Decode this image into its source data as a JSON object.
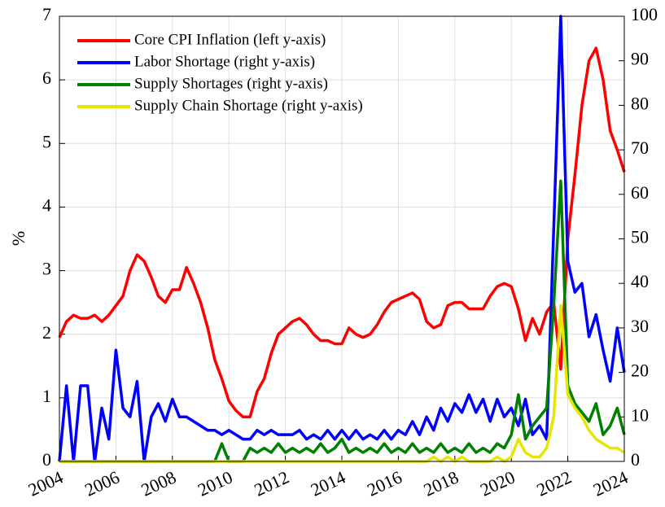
{
  "chart_data": {
    "type": "line",
    "ylabel": "%",
    "x": [
      2004,
      2004.25,
      2004.5,
      2004.75,
      2005,
      2005.25,
      2005.5,
      2005.75,
      2006,
      2006.25,
      2006.5,
      2006.75,
      2007,
      2007.25,
      2007.5,
      2007.75,
      2008,
      2008.25,
      2008.5,
      2008.75,
      2009,
      2009.25,
      2009.5,
      2009.75,
      2010,
      2010.25,
      2010.5,
      2010.75,
      2011,
      2011.25,
      2011.5,
      2011.75,
      2012,
      2012.25,
      2012.5,
      2012.75,
      2013,
      2013.25,
      2013.5,
      2013.75,
      2014,
      2014.25,
      2014.5,
      2014.75,
      2015,
      2015.25,
      2015.5,
      2015.75,
      2016,
      2016.25,
      2016.5,
      2016.75,
      2017,
      2017.25,
      2017.5,
      2017.75,
      2018,
      2018.25,
      2018.5,
      2018.75,
      2019,
      2019.25,
      2019.5,
      2019.75,
      2020,
      2020.25,
      2020.5,
      2020.75,
      2021,
      2021.25,
      2021.5,
      2021.75,
      2022,
      2022.25,
      2022.5,
      2022.75,
      2023,
      2023.25,
      2023.5,
      2023.75,
      2024
    ],
    "series": [
      {
        "name": "Core CPI Inflation (left y-axis)",
        "color": "#ff0000",
        "axis": "y",
        "values": [
          1.95,
          2.2,
          2.3,
          2.25,
          2.25,
          2.3,
          2.2,
          2.3,
          2.45,
          2.6,
          3.0,
          3.25,
          3.15,
          2.9,
          2.6,
          2.5,
          2.7,
          2.7,
          3.05,
          2.8,
          2.5,
          2.1,
          1.6,
          1.3,
          0.95,
          0.8,
          0.7,
          0.7,
          1.1,
          1.3,
          1.7,
          2.0,
          2.1,
          2.2,
          2.25,
          2.15,
          2.0,
          1.9,
          1.9,
          1.85,
          1.85,
          2.1,
          2.0,
          1.95,
          2.0,
          2.15,
          2.35,
          2.5,
          2.55,
          2.6,
          2.65,
          2.55,
          2.2,
          2.1,
          2.15,
          2.45,
          2.5,
          2.5,
          2.4,
          2.4,
          2.4,
          2.6,
          2.75,
          2.8,
          2.75,
          2.4,
          1.9,
          2.25,
          2.0,
          2.35,
          2.5,
          1.45,
          3.5,
          4.5,
          5.6,
          6.3,
          6.5,
          6.0,
          5.2,
          4.9,
          4.55
        ]
      },
      {
        "name": "Labor Shortage (right y-axis)",
        "color": "#0000ff",
        "axis": "y2",
        "values": [
          0,
          17,
          0,
          17,
          17,
          0,
          12,
          5,
          25,
          12,
          10,
          18,
          0,
          10,
          13,
          9,
          14,
          10,
          10,
          9,
          8,
          7,
          7,
          6,
          7,
          6,
          5,
          5,
          7,
          6,
          7,
          6,
          6,
          6,
          7,
          5,
          6,
          5,
          7,
          5,
          7,
          5,
          7,
          5,
          6,
          5,
          7,
          5,
          7,
          6,
          9,
          6,
          10,
          7,
          12,
          9,
          13,
          11,
          15,
          11,
          14,
          9,
          14,
          10,
          12,
          8,
          14,
          6,
          8,
          5,
          52,
          100,
          45,
          38,
          40,
          28,
          33,
          25,
          18,
          30,
          20
        ]
      },
      {
        "name": "Supply Shortages (right y-axis)",
        "color": "#008000",
        "axis": "y2",
        "values": [
          0,
          0,
          0,
          0,
          0,
          0,
          0,
          0,
          0,
          0,
          0,
          0,
          0,
          0,
          0,
          0,
          0,
          0,
          0,
          0,
          0,
          0,
          0,
          4,
          0,
          0,
          0,
          3,
          2,
          3,
          2,
          4,
          2,
          3,
          2,
          3,
          2,
          4,
          2,
          3,
          5,
          2,
          3,
          2,
          3,
          2,
          4,
          2,
          3,
          2,
          4,
          2,
          3,
          2,
          4,
          2,
          3,
          2,
          4,
          2,
          3,
          2,
          4,
          3,
          6,
          15,
          5,
          8,
          10,
          12,
          35,
          63,
          17,
          13,
          11,
          9,
          13,
          6,
          8,
          12,
          6
        ]
      },
      {
        "name": "Supply Chain Shortage (right y-axis)",
        "color": "#e6e600",
        "axis": "y2",
        "values": [
          0,
          0,
          0,
          0,
          0,
          0,
          0,
          0,
          0,
          0,
          0,
          0,
          0,
          0,
          0,
          0,
          0,
          0,
          0,
          0,
          0,
          0,
          0,
          0,
          0,
          0,
          0,
          0,
          0,
          0,
          0,
          0,
          0,
          0,
          0,
          0,
          0,
          0,
          0,
          0,
          0,
          0,
          0,
          0,
          0,
          0,
          0,
          0,
          0,
          0,
          0,
          0,
          0,
          1,
          0,
          1,
          0,
          1,
          0,
          0,
          0,
          0,
          1,
          0,
          1,
          5,
          2,
          1,
          1,
          3,
          10,
          35,
          15,
          12,
          10,
          7,
          5,
          4,
          3,
          3,
          2
        ]
      }
    ],
    "xlim": [
      2004,
      2024
    ],
    "xticks": [
      2004,
      2006,
      2008,
      2010,
      2012,
      2014,
      2016,
      2018,
      2020,
      2022,
      2024
    ],
    "ylim": [
      0,
      7
    ],
    "yticks": [
      0,
      1,
      2,
      3,
      4,
      5,
      6,
      7
    ],
    "y2lim": [
      0,
      100
    ],
    "y2ticks": [
      0,
      10,
      20,
      30,
      40,
      50,
      60,
      70,
      80,
      90,
      100
    ],
    "grid": true,
    "legend": "upper-left"
  }
}
